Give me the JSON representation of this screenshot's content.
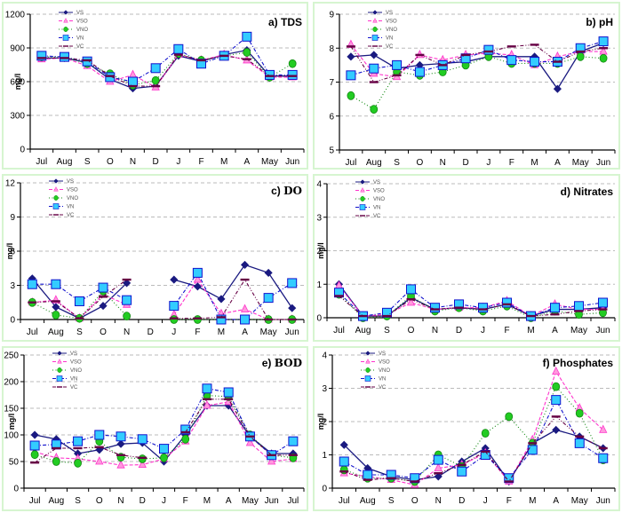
{
  "series_styles": {
    "VS": {
      "color": "#1a1a80",
      "fill": "#1a1a80",
      "marker": "diamond",
      "dash": "solid"
    },
    "VSO": {
      "color": "#ff33cc",
      "fill": "#ff99dd",
      "marker": "triangle",
      "dash": "dash"
    },
    "VNO": {
      "color": "#118811",
      "fill": "#22cc22",
      "marker": "circle",
      "dash": "dot"
    },
    "VN": {
      "color": "#1111cc",
      "fill": "#33ccff",
      "marker": "square",
      "dash": "dashdot"
    },
    "VC": {
      "color": "#660044",
      "fill": "#660044",
      "marker": "bar",
      "dash": "dashdotdot"
    }
  },
  "chart_data": [
    {
      "id": "a",
      "type": "line",
      "title_letter": "a)",
      "title": "TDS",
      "ylabel": "mg/l",
      "xlabel": "",
      "categories": [
        "Jul",
        "Aug",
        "S",
        "O",
        "N",
        "D",
        "J",
        "F",
        "M",
        "A",
        "May",
        "Jun"
      ],
      "yticks": [
        0,
        300,
        600,
        900,
        1200
      ],
      "ylim": [
        0,
        1200
      ],
      "grid": true,
      "legend": "top-left",
      "legend_labels": [
        "VS",
        "VSO",
        "VNO",
        "VN",
        "VC"
      ],
      "series": [
        {
          "name": "VS",
          "values": [
            810,
            810,
            770,
            620,
            540,
            560,
            830,
            780,
            840,
            880,
            650,
            650
          ]
        },
        {
          "name": "VSO",
          "values": [
            800,
            810,
            740,
            600,
            660,
            550,
            840,
            790,
            840,
            790,
            640,
            640
          ]
        },
        {
          "name": "VNO",
          "values": [
            820,
            820,
            760,
            670,
            570,
            610,
            850,
            790,
            830,
            860,
            640,
            760
          ]
        },
        {
          "name": "VN",
          "values": [
            830,
            820,
            780,
            640,
            600,
            720,
            890,
            760,
            830,
            1000,
            660,
            660
          ]
        },
        {
          "name": "VC",
          "values": [
            810,
            810,
            790,
            650,
            560,
            560,
            840,
            790,
            830,
            800,
            650,
            650
          ]
        }
      ]
    },
    {
      "id": "b",
      "type": "line",
      "title_letter": "b)",
      "title": "pH",
      "ylabel": "",
      "xlabel": "",
      "categories": [
        "Jul",
        "Aug",
        "S",
        "O",
        "N",
        "D",
        "J",
        "F",
        "M",
        "A",
        "May",
        "Jun"
      ],
      "yticks": [
        5,
        6,
        7,
        8,
        9
      ],
      "ylim": [
        5,
        9
      ],
      "grid": true,
      "legend": "top-left",
      "legend_labels": [
        "VS",
        "VSO",
        "VNO",
        "VN",
        "VC"
      ],
      "series": [
        {
          "name": "VS",
          "values": [
            7.75,
            7.8,
            7.4,
            7.5,
            7.55,
            7.6,
            7.75,
            7.75,
            7.75,
            6.8,
            7.9,
            8.15
          ]
        },
        {
          "name": "VSO",
          "values": [
            8.1,
            7.25,
            7.15,
            7.8,
            7.65,
            7.8,
            7.85,
            7.8,
            7.5,
            7.75,
            7.9,
            7.9
          ]
        },
        {
          "name": "VNO",
          "values": [
            6.6,
            6.2,
            7.3,
            7.2,
            7.3,
            7.5,
            7.75,
            7.55,
            7.55,
            7.55,
            7.75,
            7.7
          ]
        },
        {
          "name": "VN",
          "values": [
            7.2,
            7.4,
            7.5,
            7.3,
            7.5,
            7.7,
            7.95,
            7.65,
            7.6,
            7.6,
            8.0,
            8.2
          ]
        },
        {
          "name": "VC",
          "values": [
            8.05,
            7.0,
            7.2,
            7.8,
            7.5,
            7.8,
            7.9,
            8.05,
            8.1,
            7.6,
            7.9,
            8.0
          ]
        }
      ]
    },
    {
      "id": "c",
      "type": "line",
      "title_letter": "c)",
      "title": "DO",
      "ylabel": "mg/l",
      "xlabel": "",
      "categories": [
        "Jul",
        "Aug",
        "S",
        "O",
        "N",
        "D",
        "J",
        "F",
        "M",
        "A",
        "May",
        "Jun"
      ],
      "yticks": [
        0,
        3,
        6,
        9,
        12
      ],
      "ylim": [
        0,
        12
      ],
      "grid": true,
      "legend": "top-left",
      "legend_labels": [
        "VS",
        "VSO",
        "VNO",
        "VN",
        "VC"
      ],
      "series": [
        {
          "name": "VS",
          "values": [
            3.6,
            1.1,
            0.1,
            1.2,
            3.2,
            null,
            3.5,
            2.9,
            1.8,
            4.8,
            4.1,
            1.0
          ]
        },
        {
          "name": "VSO",
          "values": [
            1.5,
            1.7,
            0.1,
            2.2,
            1.3,
            null,
            0.4,
            3.5,
            0.5,
            0.9,
            0.0,
            0.0
          ]
        },
        {
          "name": "VNO",
          "values": [
            1.5,
            0.4,
            0.1,
            2.5,
            0.3,
            null,
            0.0,
            0.0,
            0.0,
            0.0,
            0.0,
            0.0
          ]
        },
        {
          "name": "VN",
          "values": [
            3.1,
            3.1,
            1.6,
            2.8,
            1.7,
            null,
            1.2,
            4.1,
            0.0,
            0.0,
            1.9,
            3.2
          ]
        },
        {
          "name": "VC",
          "values": [
            1.5,
            1.6,
            0.1,
            2.0,
            3.5,
            null,
            0.1,
            0.1,
            0.2,
            3.5,
            0.0,
            0.0
          ]
        }
      ]
    },
    {
      "id": "d",
      "type": "line",
      "title_letter": "d)",
      "title": "Nitrates",
      "ylabel": "mg/l",
      "xlabel": "",
      "categories": [
        "Jul",
        "Aug",
        "S",
        "O",
        "N",
        "D",
        "J",
        "F",
        "M",
        "A",
        "May",
        "Jun"
      ],
      "yticks": [
        0,
        1,
        2,
        3,
        4
      ],
      "ylim": [
        0,
        4
      ],
      "grid": true,
      "legend": "top-left",
      "legend_labels": [
        "VS",
        "VSO",
        "VNO",
        "VN",
        "VC"
      ],
      "series": [
        {
          "name": "VS",
          "values": [
            1.0,
            0.05,
            0.05,
            0.6,
            0.25,
            0.3,
            0.25,
            0.4,
            0.05,
            0.25,
            0.25,
            0.3
          ]
        },
        {
          "name": "VSO",
          "values": [
            0.95,
            0.05,
            0.1,
            0.45,
            0.25,
            0.3,
            0.3,
            0.5,
            0.05,
            0.4,
            0.25,
            0.25
          ]
        },
        {
          "name": "VNO",
          "values": [
            0.7,
            0.0,
            0.05,
            0.65,
            0.2,
            0.3,
            0.2,
            0.35,
            0.0,
            0.2,
            0.1,
            0.15
          ]
        },
        {
          "name": "VN",
          "values": [
            0.75,
            0.05,
            0.15,
            0.85,
            0.3,
            0.4,
            0.3,
            0.45,
            0.05,
            0.3,
            0.35,
            0.45
          ]
        },
        {
          "name": "VC",
          "values": [
            0.65,
            0.05,
            0.05,
            0.55,
            0.25,
            0.3,
            0.25,
            0.4,
            0.05,
            0.1,
            0.2,
            0.25
          ]
        }
      ]
    },
    {
      "id": "e",
      "type": "line",
      "title_letter": "e)",
      "title": "BOD",
      "ylabel": "mg/l",
      "xlabel": "",
      "categories": [
        "Jul",
        "Aug",
        "S",
        "O",
        "N",
        "D",
        "J",
        "F",
        "M",
        "A",
        "May",
        "Jun",
        "Jul"
      ],
      "yticks": [
        0,
        50,
        100,
        150,
        200,
        250
      ],
      "ylim": [
        0,
        250
      ],
      "grid": true,
      "legend": "top-left",
      "legend_labels": [
        "VS",
        "VSO",
        "VNO",
        "VN",
        "VC"
      ],
      "series": [
        {
          "name": "VS",
          "values": [
            100,
            92,
            65,
            72,
            83,
            85,
            50,
            100,
            155,
            155,
            97,
            65,
            65
          ]
        },
        {
          "name": "VSO",
          "values": [
            68,
            57,
            55,
            50,
            43,
            44,
            55,
            88,
            155,
            162,
            85,
            50,
            55
          ]
        },
        {
          "name": "VNO",
          "values": [
            63,
            50,
            47,
            88,
            58,
            55,
            57,
            92,
            174,
            172,
            100,
            62,
            57
          ]
        },
        {
          "name": "VN",
          "values": [
            80,
            82,
            88,
            100,
            97,
            92,
            74,
            110,
            187,
            180,
            97,
            62,
            88
          ]
        },
        {
          "name": "VC",
          "values": [
            48,
            75,
            75,
            77,
            62,
            57,
            null,
            105,
            167,
            167,
            97,
            62,
            62
          ]
        }
      ]
    },
    {
      "id": "f",
      "type": "line",
      "title_letter": "f)",
      "title": "Phosphates",
      "ylabel": "mg/l",
      "xlabel": "",
      "categories": [
        "Jul",
        "Aug",
        "S",
        "O",
        "N",
        "D",
        "J",
        "F",
        "M",
        "A",
        "May",
        "Jun"
      ],
      "yticks": [
        0,
        1,
        2,
        3,
        4
      ],
      "ylim": [
        0,
        4
      ],
      "grid": true,
      "legend": "top-left",
      "legend_labels": [
        "VS",
        "VSO",
        "VNO",
        "VN",
        "VC"
      ],
      "series": [
        {
          "name": "VS",
          "values": [
            1.3,
            0.6,
            0.35,
            0.25,
            0.35,
            0.8,
            1.2,
            0.2,
            1.35,
            1.75,
            1.55,
            1.2
          ]
        },
        {
          "name": "VSO",
          "values": [
            0.45,
            0.35,
            0.25,
            0.1,
            0.6,
            0.7,
            1.05,
            0.2,
            1.45,
            3.5,
            2.4,
            1.75
          ]
        },
        {
          "name": "VNO",
          "values": [
            0.55,
            0.3,
            0.3,
            0.2,
            1.0,
            0.65,
            1.65,
            2.15,
            1.35,
            3.05,
            2.25,
            0.85
          ]
        },
        {
          "name": "VN",
          "values": [
            0.8,
            0.4,
            0.4,
            0.3,
            0.85,
            0.5,
            1.0,
            0.3,
            1.15,
            2.65,
            1.35,
            0.9
          ]
        },
        {
          "name": "VC",
          "values": [
            0.5,
            0.25,
            0.3,
            0.2,
            0.45,
            0.7,
            1.1,
            0.2,
            1.35,
            2.15,
            1.55,
            1.2
          ]
        }
      ]
    }
  ]
}
